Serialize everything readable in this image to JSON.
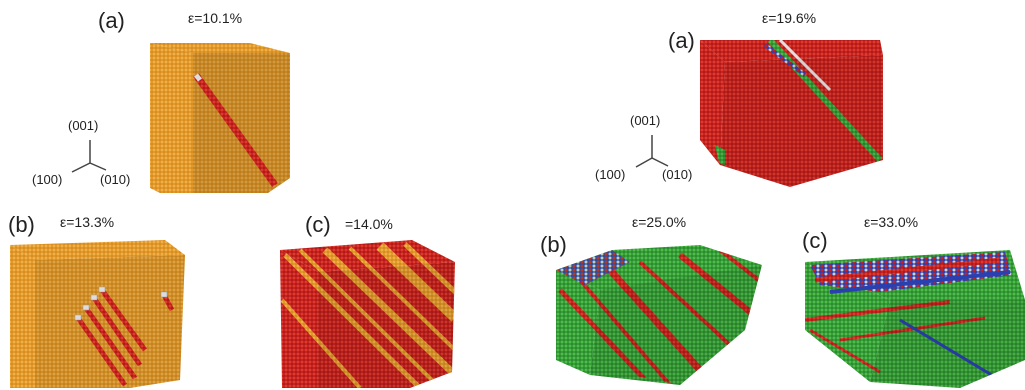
{
  "colors": {
    "fcc": "#e09a2a",
    "hcp": "#cc2222",
    "bcc": "#3aa23a",
    "other": "#2a3fb0",
    "surface_atom": "#d8d8d8"
  },
  "left_figure": {
    "axes": {
      "z": "(001)",
      "x": "(100)",
      "y": "(010)"
    },
    "panels": [
      {
        "letter": "(a)",
        "strain": "ε=10.1%"
      },
      {
        "letter": "(b)",
        "strain": "ε=13.3%"
      },
      {
        "letter": "(c)",
        "strain": "=14.0%"
      }
    ]
  },
  "right_figure": {
    "axes": {
      "z": "(001)",
      "x": "(100)",
      "y": "(010)"
    },
    "panels": [
      {
        "letter": "(a)",
        "strain": "ε=19.6%"
      },
      {
        "letter": "(b)",
        "strain": "ε=25.0%"
      },
      {
        "letter": "(c)",
        "strain": "ε=33.0%"
      }
    ]
  }
}
